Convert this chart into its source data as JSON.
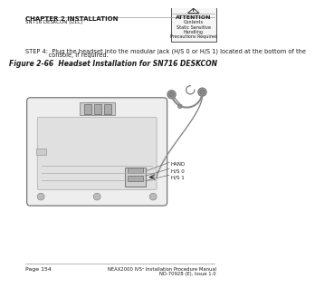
{
  "header_line1": "CHAPTER 2 INSTALLATION",
  "header_line2": "SN716 DESKCON (DLC)",
  "footer_left": "Page 154",
  "footer_right1": "NEAX2000 IVS² Installation Procedure Manual",
  "footer_right2": "ND-70928 (E), Issue 1.0",
  "step_line1": "STEP 4:  Plug the headset into the modular jack (H/S 0 or H/S 1) located at the bottom of the",
  "step_line2": "            console, if required.",
  "figure_caption": "Figure 2-66  Headset Installation for SN716 DESKCON",
  "attention_title": "ATTENTION",
  "attention_lines": [
    "Contents",
    "Static Sensitive",
    "Handling",
    "Precautions Required"
  ],
  "labels": [
    "HAND",
    "H/S 0",
    "H/S 1"
  ],
  "bg_color": "#ffffff",
  "text_color": "#1a1a1a",
  "line_color": "#999999"
}
